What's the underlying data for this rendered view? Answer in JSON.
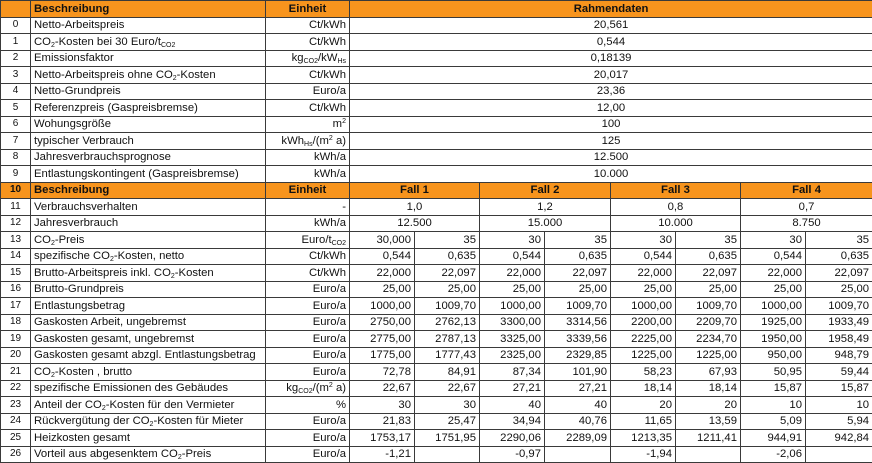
{
  "colors": {
    "header_bg": "#F7941D",
    "border": "#3a3a3a"
  },
  "header": {
    "index": "",
    "description": "Beschreibung",
    "unit": "Einheit",
    "rahmendaten": "Rahmendaten"
  },
  "rahmendaten_rows": [
    {
      "idx": "0",
      "desc": [
        [
          "Netto-Arbeitspreis",
          ""
        ]
      ],
      "unit": [
        [
          "Ct/kWh",
          ""
        ]
      ],
      "value": "20,561"
    },
    {
      "idx": "1",
      "desc": [
        [
          "CO",
          ""
        ],
        [
          "2",
          "sub"
        ],
        [
          "-Kosten bei 30 Euro/t",
          ""
        ],
        [
          "CO2",
          "sub"
        ]
      ],
      "unit": [
        [
          "Ct/kWh",
          ""
        ]
      ],
      "value": "0,544"
    },
    {
      "idx": "2",
      "desc": [
        [
          "Emissionsfaktor",
          ""
        ]
      ],
      "unit": [
        [
          "kg",
          ""
        ],
        [
          "CO2",
          "sub"
        ],
        [
          "/kW",
          ""
        ],
        [
          "Hs",
          "sub"
        ]
      ],
      "value": "0,18139"
    },
    {
      "idx": "3",
      "desc": [
        [
          "Netto-Arbeitspreis ohne CO",
          ""
        ],
        [
          "2",
          "sub"
        ],
        [
          "-Kosten",
          ""
        ]
      ],
      "unit": [
        [
          "Ct/kWh",
          ""
        ]
      ],
      "value": "20,017"
    },
    {
      "idx": "4",
      "desc": [
        [
          "Netto-Grundpreis",
          ""
        ]
      ],
      "unit": [
        [
          "Euro/a",
          ""
        ]
      ],
      "value": "23,36"
    },
    {
      "idx": "5",
      "desc": [
        [
          "Referenzpreis (Gaspreisbremse)",
          ""
        ]
      ],
      "unit": [
        [
          "Ct/kWh",
          ""
        ]
      ],
      "value": "12,00"
    },
    {
      "idx": "6",
      "desc": [
        [
          "Wohungsgröße",
          ""
        ]
      ],
      "unit": [
        [
          "m",
          ""
        ],
        [
          "2",
          "sup"
        ]
      ],
      "value": "100"
    },
    {
      "idx": "7",
      "desc": [
        [
          "typischer Verbrauch",
          ""
        ]
      ],
      "unit": [
        [
          "kWh",
          ""
        ],
        [
          "Hs",
          "sub"
        ],
        [
          "/(m",
          ""
        ],
        [
          "2",
          "sup"
        ],
        [
          " a)",
          ""
        ]
      ],
      "value": "125"
    },
    {
      "idx": "8",
      "desc": [
        [
          "Jahresverbrauchsprognose",
          ""
        ]
      ],
      "unit": [
        [
          "kWh/a",
          ""
        ]
      ],
      "value": "12.500"
    },
    {
      "idx": "9",
      "desc": [
        [
          "Entlastungskontingent (Gaspreisbremse)",
          ""
        ]
      ],
      "unit": [
        [
          "kWh/a",
          ""
        ]
      ],
      "value": "10.000"
    }
  ],
  "case_header": {
    "idx": "10",
    "description": "Beschreibung",
    "unit": "Einheit",
    "cases": [
      "Fall 1",
      "Fall 2",
      "Fall 3",
      "Fall 4"
    ]
  },
  "case_rows": [
    {
      "idx": "11",
      "desc": [
        [
          "Verbrauchsverhalten",
          ""
        ]
      ],
      "unit": [
        [
          "-",
          ""
        ]
      ],
      "values": [
        "1,0",
        "1,2",
        "0,8",
        "0,7"
      ]
    },
    {
      "idx": "12",
      "desc": [
        [
          "Jahresverbrauch",
          ""
        ]
      ],
      "unit": [
        [
          "kWh/a",
          ""
        ]
      ],
      "values": [
        "12.500",
        "15.000",
        "10.000",
        "8.750"
      ]
    }
  ],
  "detail_rows": [
    {
      "idx": "13",
      "desc": [
        [
          "CO",
          ""
        ],
        [
          "2",
          "sub"
        ],
        [
          "-Preis",
          ""
        ]
      ],
      "unit": [
        [
          "Euro/t",
          ""
        ],
        [
          "CO2",
          "sub"
        ]
      ],
      "values": [
        "30,000",
        "35",
        "30",
        "35",
        "30",
        "35",
        "30",
        "35"
      ]
    },
    {
      "idx": "14",
      "desc": [
        [
          "spezifische CO",
          ""
        ],
        [
          "2",
          "sub"
        ],
        [
          "-Kosten, netto",
          ""
        ]
      ],
      "unit": [
        [
          "Ct/kWh",
          ""
        ]
      ],
      "values": [
        "0,544",
        "0,635",
        "0,544",
        "0,635",
        "0,544",
        "0,635",
        "0,544",
        "0,635"
      ]
    },
    {
      "idx": "15",
      "desc": [
        [
          "Brutto-Arbeitspreis inkl. CO",
          ""
        ],
        [
          "2",
          "sub"
        ],
        [
          "-Kosten",
          ""
        ]
      ],
      "unit": [
        [
          "Ct/kWh",
          ""
        ]
      ],
      "values": [
        "22,000",
        "22,097",
        "22,000",
        "22,097",
        "22,000",
        "22,097",
        "22,000",
        "22,097"
      ]
    },
    {
      "idx": "16",
      "desc": [
        [
          "Brutto-Grundpreis",
          ""
        ]
      ],
      "unit": [
        [
          "Euro/a",
          ""
        ]
      ],
      "values": [
        "25,00",
        "25,00",
        "25,00",
        "25,00",
        "25,00",
        "25,00",
        "25,00",
        "25,00"
      ]
    },
    {
      "idx": "17",
      "desc": [
        [
          "Entlastungsbetrag",
          ""
        ]
      ],
      "unit": [
        [
          "Euro/a",
          ""
        ]
      ],
      "values": [
        "1000,00",
        "1009,70",
        "1000,00",
        "1009,70",
        "1000,00",
        "1009,70",
        "1000,00",
        "1009,70"
      ]
    },
    {
      "idx": "18",
      "desc": [
        [
          "Gaskosten Arbeit, ungebremst",
          ""
        ]
      ],
      "unit": [
        [
          "Euro/a",
          ""
        ]
      ],
      "values": [
        "2750,00",
        "2762,13",
        "3300,00",
        "3314,56",
        "2200,00",
        "2209,70",
        "1925,00",
        "1933,49"
      ]
    },
    {
      "idx": "19",
      "desc": [
        [
          "Gaskosten gesamt, ungebremst",
          ""
        ]
      ],
      "unit": [
        [
          "Euro/a",
          ""
        ]
      ],
      "values": [
        "2775,00",
        "2787,13",
        "3325,00",
        "3339,56",
        "2225,00",
        "2234,70",
        "1950,00",
        "1958,49"
      ]
    },
    {
      "idx": "20",
      "desc": [
        [
          "Gaskosten gesamt abzgl. Entlastungsbetrag",
          ""
        ]
      ],
      "unit": [
        [
          "Euro/a",
          ""
        ]
      ],
      "values": [
        "1775,00",
        "1777,43",
        "2325,00",
        "2329,85",
        "1225,00",
        "1225,00",
        "950,00",
        "948,79"
      ]
    },
    {
      "idx": "21",
      "desc": [
        [
          "CO",
          ""
        ],
        [
          "2",
          "sub"
        ],
        [
          "-Kosten , brutto",
          ""
        ]
      ],
      "unit": [
        [
          "Euro/a",
          ""
        ]
      ],
      "values": [
        "72,78",
        "84,91",
        "87,34",
        "101,90",
        "58,23",
        "67,93",
        "50,95",
        "59,44"
      ]
    },
    {
      "idx": "22",
      "desc": [
        [
          "spezifische Emissionen des Gebäudes",
          ""
        ]
      ],
      "unit": [
        [
          "kg",
          ""
        ],
        [
          "CO2",
          "sub"
        ],
        [
          "/(m",
          ""
        ],
        [
          "2",
          "sup"
        ],
        [
          " a)",
          ""
        ]
      ],
      "values": [
        "22,67",
        "22,67",
        "27,21",
        "27,21",
        "18,14",
        "18,14",
        "15,87",
        "15,87"
      ]
    },
    {
      "idx": "23",
      "desc": [
        [
          "Anteil der CO",
          ""
        ],
        [
          "2",
          "sub"
        ],
        [
          "-Kosten für den Vermieter",
          ""
        ]
      ],
      "unit": [
        [
          "%",
          ""
        ]
      ],
      "values": [
        "30",
        "30",
        "40",
        "40",
        "20",
        "20",
        "10",
        "10"
      ]
    },
    {
      "idx": "24",
      "desc": [
        [
          "Rückvergütung der CO",
          ""
        ],
        [
          "2",
          "sub"
        ],
        [
          "-Kosten für Mieter",
          ""
        ]
      ],
      "unit": [
        [
          "Euro/a",
          ""
        ]
      ],
      "values": [
        "21,83",
        "25,47",
        "34,94",
        "40,76",
        "11,65",
        "13,59",
        "5,09",
        "5,94"
      ]
    },
    {
      "idx": "25",
      "desc": [
        [
          "Heizkosten gesamt",
          ""
        ]
      ],
      "unit": [
        [
          "Euro/a",
          ""
        ]
      ],
      "values": [
        "1753,17",
        "1751,95",
        "2290,06",
        "2289,09",
        "1213,35",
        "1211,41",
        "944,91",
        "942,84"
      ]
    },
    {
      "idx": "26",
      "desc": [
        [
          "Vorteil aus abgesenktem CO",
          ""
        ],
        [
          "2",
          "sub"
        ],
        [
          "-Preis",
          ""
        ]
      ],
      "unit": [
        [
          "Euro/a",
          ""
        ]
      ],
      "values": [
        "-1,21",
        "",
        "-0,97",
        "",
        "-1,94",
        "",
        "-2,06",
        ""
      ]
    }
  ]
}
